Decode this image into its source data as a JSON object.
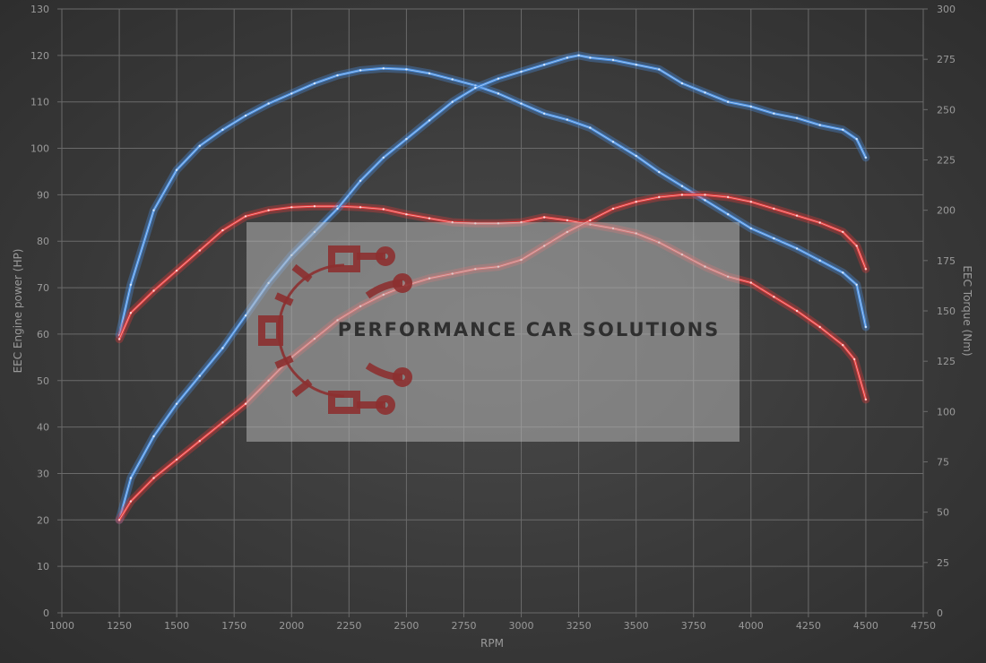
{
  "chart_data": {
    "type": "line",
    "title": "",
    "xlabel": "RPM",
    "ylabel_left": "EEC Engine power (HP)",
    "ylabel_right": "EEC Torque (Nm)",
    "xlim": [
      1000,
      4750
    ],
    "ylim_left": [
      0,
      130
    ],
    "ylim_right": [
      0,
      300
    ],
    "x_ticks": [
      1000,
      1250,
      1500,
      1750,
      2000,
      2250,
      2500,
      2750,
      3000,
      3250,
      3500,
      3750,
      4000,
      4250,
      4500,
      4750
    ],
    "y_left_ticks": [
      0,
      10,
      20,
      30,
      40,
      50,
      60,
      70,
      80,
      90,
      100,
      110,
      120,
      130
    ],
    "y_right_ticks": [
      0,
      25,
      50,
      75,
      100,
      125,
      150,
      175,
      200,
      225,
      250,
      275,
      300
    ],
    "grid": true,
    "series": [
      {
        "axis": "right",
        "color": "#4a90e2",
        "points": [
          [
            1250,
            138
          ],
          [
            1300,
            163
          ],
          [
            1400,
            200
          ],
          [
            1500,
            220
          ],
          [
            1600,
            232
          ],
          [
            1700,
            240
          ],
          [
            1800,
            247
          ],
          [
            1900,
            253
          ],
          [
            2000,
            258
          ],
          [
            2100,
            263
          ],
          [
            2200,
            267
          ],
          [
            2300,
            269.5
          ],
          [
            2400,
            270.5
          ],
          [
            2500,
            270
          ],
          [
            2600,
            268
          ],
          [
            2700,
            265
          ],
          [
            2800,
            262
          ],
          [
            2900,
            258
          ],
          [
            3000,
            253
          ],
          [
            3100,
            248
          ],
          [
            3200,
            245
          ],
          [
            3300,
            241
          ],
          [
            3400,
            234
          ],
          [
            3500,
            227
          ],
          [
            3600,
            219
          ],
          [
            3700,
            212
          ],
          [
            3800,
            205
          ],
          [
            3900,
            198
          ],
          [
            4000,
            191
          ],
          [
            4100,
            186
          ],
          [
            4200,
            181
          ],
          [
            4300,
            175
          ],
          [
            4400,
            169
          ],
          [
            4460,
            163
          ],
          [
            4500,
            142
          ]
        ]
      },
      {
        "axis": "right",
        "color": "#e23a3a",
        "points": [
          [
            1250,
            136
          ],
          [
            1300,
            149
          ],
          [
            1400,
            160
          ],
          [
            1500,
            170
          ],
          [
            1600,
            180
          ],
          [
            1700,
            190
          ],
          [
            1800,
            197
          ],
          [
            1900,
            200
          ],
          [
            2000,
            201.5
          ],
          [
            2100,
            202
          ],
          [
            2200,
            202
          ],
          [
            2300,
            201.5
          ],
          [
            2400,
            200.5
          ],
          [
            2500,
            198
          ],
          [
            2600,
            196
          ],
          [
            2700,
            194
          ],
          [
            2800,
            193.5
          ],
          [
            2900,
            193.5
          ],
          [
            3000,
            194
          ],
          [
            3100,
            196.5
          ],
          [
            3200,
            195
          ],
          [
            3300,
            193
          ],
          [
            3400,
            191
          ],
          [
            3500,
            188.5
          ],
          [
            3600,
            184
          ],
          [
            3700,
            178
          ],
          [
            3800,
            172
          ],
          [
            3900,
            167
          ],
          [
            4000,
            164
          ],
          [
            4100,
            157
          ],
          [
            4200,
            150
          ],
          [
            4300,
            142
          ],
          [
            4400,
            133
          ],
          [
            4450,
            126
          ],
          [
            4500,
            106
          ]
        ]
      },
      {
        "axis": "left",
        "color": "#4a90e2",
        "points": [
          [
            1250,
            20
          ],
          [
            1300,
            29
          ],
          [
            1400,
            38
          ],
          [
            1500,
            45
          ],
          [
            1600,
            51
          ],
          [
            1700,
            57
          ],
          [
            1800,
            64
          ],
          [
            1900,
            71
          ],
          [
            2000,
            77
          ],
          [
            2100,
            82
          ],
          [
            2200,
            87
          ],
          [
            2300,
            93
          ],
          [
            2400,
            98
          ],
          [
            2500,
            102
          ],
          [
            2600,
            106
          ],
          [
            2700,
            110
          ],
          [
            2800,
            113
          ],
          [
            2900,
            115
          ],
          [
            3000,
            116.5
          ],
          [
            3100,
            118
          ],
          [
            3200,
            119.5
          ],
          [
            3250,
            120
          ],
          [
            3300,
            119.5
          ],
          [
            3400,
            119
          ],
          [
            3500,
            118
          ],
          [
            3600,
            117
          ],
          [
            3700,
            114
          ],
          [
            3800,
            112
          ],
          [
            3900,
            110
          ],
          [
            4000,
            109
          ],
          [
            4100,
            107.5
          ],
          [
            4200,
            106.5
          ],
          [
            4300,
            105
          ],
          [
            4400,
            104
          ],
          [
            4460,
            102
          ],
          [
            4500,
            98
          ]
        ]
      },
      {
        "axis": "left",
        "color": "#e23a3a",
        "points": [
          [
            1250,
            20
          ],
          [
            1300,
            24
          ],
          [
            1400,
            29
          ],
          [
            1500,
            33
          ],
          [
            1600,
            37
          ],
          [
            1700,
            41
          ],
          [
            1800,
            45
          ],
          [
            1900,
            50
          ],
          [
            2000,
            55
          ],
          [
            2100,
            59
          ],
          [
            2200,
            63
          ],
          [
            2300,
            66
          ],
          [
            2400,
            68.5
          ],
          [
            2500,
            70.5
          ],
          [
            2600,
            72
          ],
          [
            2700,
            73
          ],
          [
            2800,
            74
          ],
          [
            2900,
            74.5
          ],
          [
            3000,
            76
          ],
          [
            3100,
            79
          ],
          [
            3200,
            82
          ],
          [
            3300,
            84.5
          ],
          [
            3400,
            87
          ],
          [
            3500,
            88.5
          ],
          [
            3600,
            89.5
          ],
          [
            3700,
            90
          ],
          [
            3800,
            90
          ],
          [
            3900,
            89.5
          ],
          [
            4000,
            88.5
          ],
          [
            4100,
            87
          ],
          [
            4200,
            85.5
          ],
          [
            4300,
            84
          ],
          [
            4400,
            82
          ],
          [
            4460,
            79
          ],
          [
            4500,
            74
          ]
        ]
      }
    ]
  },
  "watermark": {
    "text": "PERFORMANCE CAR SOLUTIONS",
    "icon": "gear-circuit-logo",
    "logo_color": "#8c3030"
  }
}
